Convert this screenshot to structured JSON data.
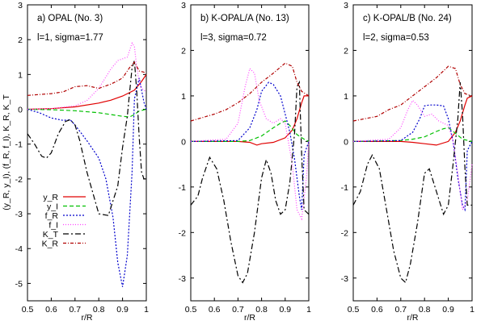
{
  "chart_data": {
    "type": "line",
    "shared": {
      "xlabel": "r/R",
      "ylabel": "(y_R, y_I),  (f_R, f_I),  K_R,  K_T",
      "xlim": [
        0.5,
        1.0
      ],
      "xticks": [
        "0.5",
        "0.6",
        "0.7",
        "0.8",
        "0.9",
        "1"
      ],
      "legend_position": "lower-left of panel a",
      "series_styles": [
        {
          "name": "y_R",
          "color": "#e00000",
          "dash": ""
        },
        {
          "name": "y_I",
          "color": "#00c000",
          "dash": "5,3"
        },
        {
          "name": "f_R",
          "color": "#0000cc",
          "dash": "2,2"
        },
        {
          "name": "f_I",
          "color": "#ff40ff",
          "dash": "1,2"
        },
        {
          "name": "K_T",
          "color": "#000000",
          "dash": "7,3,2,3"
        },
        {
          "name": "K_R",
          "color": "#b00000",
          "dash": "4,2,1,2"
        }
      ]
    },
    "panels": [
      {
        "title": "a) OPAL (No. 3)",
        "subtitle": "l=1, sigma=1.77",
        "ylim": [
          -5.5,
          3
        ],
        "yticks": [
          "3",
          "2",
          "1",
          "0",
          "-1",
          "-2",
          "-3",
          "-4",
          "-5"
        ],
        "legend": [
          "y_R",
          "y_I",
          "f_R",
          "f_I",
          "K_T",
          "K_R"
        ],
        "series": [
          {
            "name": "y_R",
            "x": [
              0.5,
              0.6,
              0.7,
              0.8,
              0.85,
              0.9,
              0.95,
              0.98,
              1.0
            ],
            "y": [
              0,
              0.02,
              0.07,
              0.18,
              0.26,
              0.38,
              0.55,
              0.8,
              1.0
            ]
          },
          {
            "name": "y_I",
            "x": [
              0.5,
              0.6,
              0.7,
              0.8,
              0.85,
              0.9,
              0.93,
              0.95,
              0.97,
              1.0
            ],
            "y": [
              0,
              -0.01,
              -0.04,
              -0.1,
              -0.15,
              -0.2,
              -0.22,
              -0.15,
              -0.05,
              0
            ]
          },
          {
            "name": "f_R",
            "x": [
              0.5,
              0.55,
              0.6,
              0.65,
              0.68,
              0.7,
              0.75,
              0.8,
              0.83,
              0.86,
              0.88,
              0.9,
              0.92,
              0.94,
              0.95,
              0.97,
              0.99,
              1.0
            ],
            "y": [
              0,
              -0.1,
              -0.25,
              -0.32,
              -0.3,
              -0.45,
              -0.9,
              -1.4,
              -2.0,
              -3.1,
              -4.4,
              -5.1,
              -4.2,
              -1.8,
              0.3,
              0.9,
              0.2,
              0
            ]
          },
          {
            "name": "f_I",
            "x": [
              0.5,
              0.6,
              0.7,
              0.75,
              0.8,
              0.85,
              0.88,
              0.9,
              0.92,
              0.94,
              0.95,
              0.96,
              0.97,
              0.98,
              1.0
            ],
            "y": [
              0,
              0.02,
              0.1,
              0.25,
              0.6,
              1.15,
              1.4,
              1.45,
              1.5,
              1.9,
              1.8,
              1.2,
              0.8,
              0.6,
              0.5
            ]
          },
          {
            "name": "K_T",
            "x": [
              0.5,
              0.53,
              0.56,
              0.58,
              0.6,
              0.63,
              0.66,
              0.68,
              0.7,
              0.72,
              0.75,
              0.8,
              0.84,
              0.88,
              0.9,
              0.92,
              0.93,
              0.94,
              0.95,
              0.96,
              0.97,
              0.98,
              0.99,
              1.0
            ],
            "y": [
              -0.7,
              -1.0,
              -1.35,
              -1.4,
              -1.25,
              -0.7,
              -0.35,
              -0.3,
              -0.45,
              -0.9,
              -1.8,
              -3.0,
              -3.05,
              -2.2,
              -1.1,
              -0.2,
              0.5,
              1.2,
              1.4,
              0.5,
              -0.8,
              -1.8,
              -2.0,
              -2.0
            ]
          },
          {
            "name": "K_R",
            "x": [
              0.5,
              0.6,
              0.65,
              0.7,
              0.75,
              0.8,
              0.85,
              0.88,
              0.9,
              0.93,
              0.95,
              0.97,
              1.0
            ],
            "y": [
              0.4,
              0.45,
              0.5,
              0.65,
              0.68,
              0.6,
              0.72,
              0.82,
              0.9,
              1.2,
              1.35,
              1.1,
              1.05
            ]
          }
        ]
      },
      {
        "title": "b) K-OPAL/A (No. 13)",
        "subtitle": "l=3, sigma=0.72",
        "ylim": [
          -3.5,
          3
        ],
        "yticks": [
          "3",
          "2",
          "1",
          "0",
          "-1",
          "-2",
          "-3"
        ],
        "series": [
          {
            "name": "y_R",
            "x": [
              0.5,
              0.7,
              0.75,
              0.78,
              0.8,
              0.85,
              0.9,
              0.93,
              0.95,
              0.97,
              0.98,
              1.0
            ],
            "y": [
              0,
              0,
              -0.02,
              -0.08,
              -0.05,
              -0.02,
              0.08,
              0.25,
              0.5,
              0.85,
              1.0,
              1.0
            ]
          },
          {
            "name": "y_I",
            "x": [
              0.5,
              0.7,
              0.75,
              0.8,
              0.85,
              0.88,
              0.9,
              0.92,
              0.95,
              0.98,
              1.0
            ],
            "y": [
              0,
              0,
              0.02,
              0.12,
              0.3,
              0.4,
              0.45,
              0.35,
              0.15,
              0.05,
              0
            ]
          },
          {
            "name": "f_R",
            "x": [
              0.5,
              0.7,
              0.75,
              0.78,
              0.8,
              0.83,
              0.85,
              0.88,
              0.9,
              0.92,
              0.94,
              0.96,
              0.97,
              0.98,
              1.0
            ],
            "y": [
              0,
              0.02,
              0.3,
              0.7,
              1.1,
              1.3,
              1.25,
              1.0,
              0.6,
              0.2,
              -0.4,
              -1.2,
              -1.5,
              -0.3,
              0
            ]
          },
          {
            "name": "f_I",
            "x": [
              0.5,
              0.65,
              0.7,
              0.73,
              0.75,
              0.77,
              0.79,
              0.82,
              0.85,
              0.88,
              0.9,
              0.93,
              0.95,
              0.97,
              0.99,
              1.0
            ],
            "y": [
              0,
              0.05,
              0.4,
              1.2,
              1.6,
              1.5,
              0.9,
              0.5,
              0.4,
              0.5,
              0.4,
              -0.5,
              -1.5,
              -1.7,
              -0.8,
              0
            ]
          },
          {
            "name": "K_T",
            "x": [
              0.5,
              0.53,
              0.55,
              0.58,
              0.61,
              0.64,
              0.67,
              0.7,
              0.72,
              0.74,
              0.77,
              0.8,
              0.82,
              0.84,
              0.86,
              0.88,
              0.9,
              0.92,
              0.94,
              0.95,
              0.96,
              0.97,
              0.98,
              1.0
            ],
            "y": [
              -1.4,
              -1.2,
              -0.8,
              -0.35,
              -0.6,
              -1.3,
              -2.2,
              -2.95,
              -3.1,
              -2.9,
              -2.0,
              -0.8,
              -0.4,
              -0.7,
              -1.3,
              -1.6,
              -1.5,
              -0.9,
              0.2,
              1.2,
              1.3,
              -0.3,
              -1.5,
              -1.6
            ]
          },
          {
            "name": "K_R",
            "x": [
              0.5,
              0.6,
              0.65,
              0.7,
              0.75,
              0.8,
              0.85,
              0.9,
              0.93,
              0.95,
              0.97,
              1.0
            ],
            "y": [
              0.45,
              0.6,
              0.7,
              0.85,
              1.05,
              1.3,
              1.5,
              1.72,
              1.65,
              1.3,
              1.1,
              1.0
            ]
          }
        ]
      },
      {
        "title": "c) K-OPAL/B (No. 24)",
        "subtitle": "l=2, sigma=0.53",
        "ylim": [
          -3.5,
          3
        ],
        "yticks": [
          "3",
          "2",
          "1",
          "0",
          "-1",
          "-2",
          "-3"
        ],
        "series": [
          {
            "name": "y_R",
            "x": [
              0.5,
              0.7,
              0.75,
              0.8,
              0.85,
              0.9,
              0.93,
              0.95,
              0.97,
              0.98,
              1.0
            ],
            "y": [
              0,
              0,
              -0.02,
              -0.05,
              -0.08,
              0.0,
              0.2,
              0.45,
              0.8,
              0.95,
              1.0
            ]
          },
          {
            "name": "y_I",
            "x": [
              0.5,
              0.7,
              0.75,
              0.8,
              0.85,
              0.88,
              0.9,
              0.93,
              0.96,
              1.0
            ],
            "y": [
              0,
              0.02,
              0.05,
              0.1,
              0.22,
              0.28,
              0.3,
              0.18,
              0.05,
              0
            ]
          },
          {
            "name": "f_R",
            "x": [
              0.5,
              0.7,
              0.75,
              0.78,
              0.8,
              0.82,
              0.85,
              0.88,
              0.9,
              0.92,
              0.94,
              0.96,
              0.97,
              0.98,
              1.0
            ],
            "y": [
              0,
              0.02,
              0.2,
              0.5,
              0.78,
              0.8,
              0.8,
              0.78,
              0.5,
              0.0,
              -0.8,
              -1.4,
              -1.5,
              -0.2,
              0
            ]
          },
          {
            "name": "f_I",
            "x": [
              0.5,
              0.65,
              0.7,
              0.73,
              0.75,
              0.77,
              0.8,
              0.83,
              0.86,
              0.9,
              0.92,
              0.94,
              0.96,
              0.98,
              1.0
            ],
            "y": [
              0,
              0.05,
              0.3,
              0.7,
              0.9,
              0.8,
              0.55,
              0.6,
              0.45,
              0.35,
              0.0,
              -0.7,
              -1.5,
              -1.3,
              -0.5
            ]
          },
          {
            "name": "K_T",
            "x": [
              0.5,
              0.53,
              0.56,
              0.58,
              0.61,
              0.64,
              0.67,
              0.7,
              0.72,
              0.74,
              0.77,
              0.8,
              0.82,
              0.85,
              0.88,
              0.9,
              0.92,
              0.94,
              0.95,
              0.96,
              0.97,
              0.98,
              1.0
            ],
            "y": [
              -1.4,
              -1.1,
              -0.5,
              -0.3,
              -0.6,
              -1.5,
              -2.4,
              -3.0,
              -3.1,
              -2.7,
              -1.8,
              -0.7,
              -0.6,
              -1.1,
              -1.6,
              -1.4,
              -0.5,
              0.5,
              1.3,
              0.6,
              -0.6,
              -1.4,
              -1.4
            ]
          },
          {
            "name": "K_R",
            "x": [
              0.5,
              0.6,
              0.65,
              0.7,
              0.75,
              0.8,
              0.85,
              0.9,
              0.93,
              0.95,
              0.97,
              1.0
            ],
            "y": [
              0.45,
              0.55,
              0.7,
              0.8,
              1.0,
              1.2,
              1.4,
              1.65,
              1.6,
              1.25,
              1.05,
              1.0
            ]
          }
        ]
      }
    ]
  }
}
